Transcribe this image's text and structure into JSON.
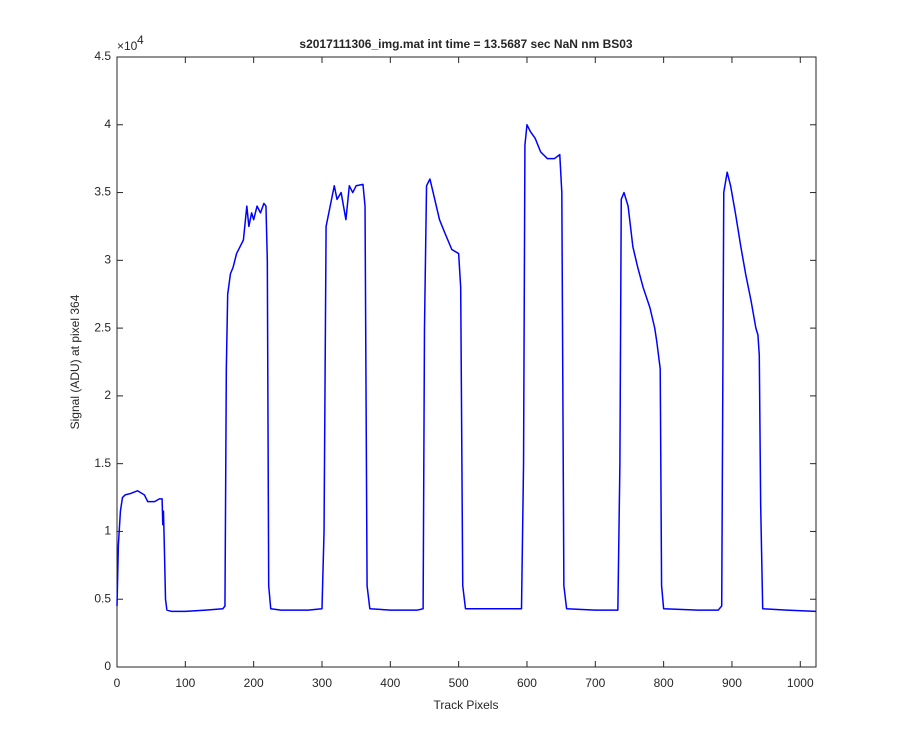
{
  "chart_data": {
    "type": "line",
    "title": "s2017111306_img.mat int time = 13.5687 sec  NaN nm BS03",
    "x_label": "Track Pixels",
    "y_label": "Signal (ADU) at pixel 364",
    "y_scale_label": {
      "text": "×10",
      "power": "4"
    },
    "color": "#0000ff",
    "xlim": [
      0,
      1023
    ],
    "ylim": [
      0,
      4.5
    ],
    "xticks": [
      0,
      100,
      200,
      300,
      400,
      500,
      600,
      700,
      800,
      900,
      1000
    ],
    "yticks": [
      0,
      0.5,
      1,
      1.5,
      2,
      2.5,
      3,
      3.5,
      4,
      4.5
    ],
    "x": [
      0,
      2,
      5,
      8,
      12,
      20,
      30,
      40,
      45,
      55,
      62,
      66,
      67,
      68,
      69,
      71,
      73,
      80,
      100,
      130,
      155,
      158,
      160,
      162,
      166,
      170,
      175,
      180,
      185,
      190,
      193,
      197,
      200,
      205,
      210,
      215,
      218,
      220,
      222,
      225,
      240,
      280,
      300,
      303,
      306,
      310,
      318,
      322,
      328,
      335,
      340,
      345,
      350,
      360,
      363,
      366,
      370,
      400,
      440,
      448,
      450,
      453,
      458,
      465,
      472,
      480,
      490,
      500,
      503,
      506,
      510,
      550,
      592,
      595,
      597,
      600,
      605,
      612,
      620,
      630,
      640,
      648,
      651,
      654,
      658,
      700,
      733,
      736,
      738,
      742,
      748,
      755,
      762,
      770,
      780,
      787,
      790,
      795,
      797,
      800,
      850,
      880,
      885,
      888,
      893,
      898,
      905,
      913,
      920,
      928,
      935,
      938,
      940,
      942,
      945,
      980,
      1023
    ],
    "values": [
      0.45,
      0.9,
      1.15,
      1.25,
      1.27,
      1.28,
      1.3,
      1.27,
      1.22,
      1.22,
      1.24,
      1.24,
      1.05,
      1.15,
      0.95,
      0.5,
      0.42,
      0.41,
      0.41,
      0.42,
      0.43,
      0.45,
      2.2,
      2.75,
      2.9,
      2.95,
      3.05,
      3.1,
      3.15,
      3.4,
      3.25,
      3.35,
      3.3,
      3.4,
      3.35,
      3.42,
      3.4,
      3.0,
      0.6,
      0.43,
      0.42,
      0.42,
      0.43,
      1.0,
      3.25,
      3.35,
      3.55,
      3.45,
      3.5,
      3.3,
      3.55,
      3.5,
      3.55,
      3.56,
      3.4,
      0.6,
      0.43,
      0.42,
      0.42,
      0.43,
      2.5,
      3.55,
      3.6,
      3.45,
      3.3,
      3.2,
      3.08,
      3.05,
      2.8,
      0.6,
      0.43,
      0.43,
      0.43,
      1.5,
      3.85,
      4.0,
      3.95,
      3.9,
      3.8,
      3.75,
      3.75,
      3.78,
      3.5,
      0.6,
      0.43,
      0.42,
      0.42,
      1.5,
      3.45,
      3.5,
      3.4,
      3.1,
      2.95,
      2.8,
      2.65,
      2.5,
      2.4,
      2.2,
      0.6,
      0.43,
      0.42,
      0.42,
      0.45,
      3.5,
      3.65,
      3.55,
      3.35,
      3.1,
      2.9,
      2.7,
      2.5,
      2.45,
      2.3,
      1.2,
      0.43,
      0.42,
      0.41
    ]
  }
}
